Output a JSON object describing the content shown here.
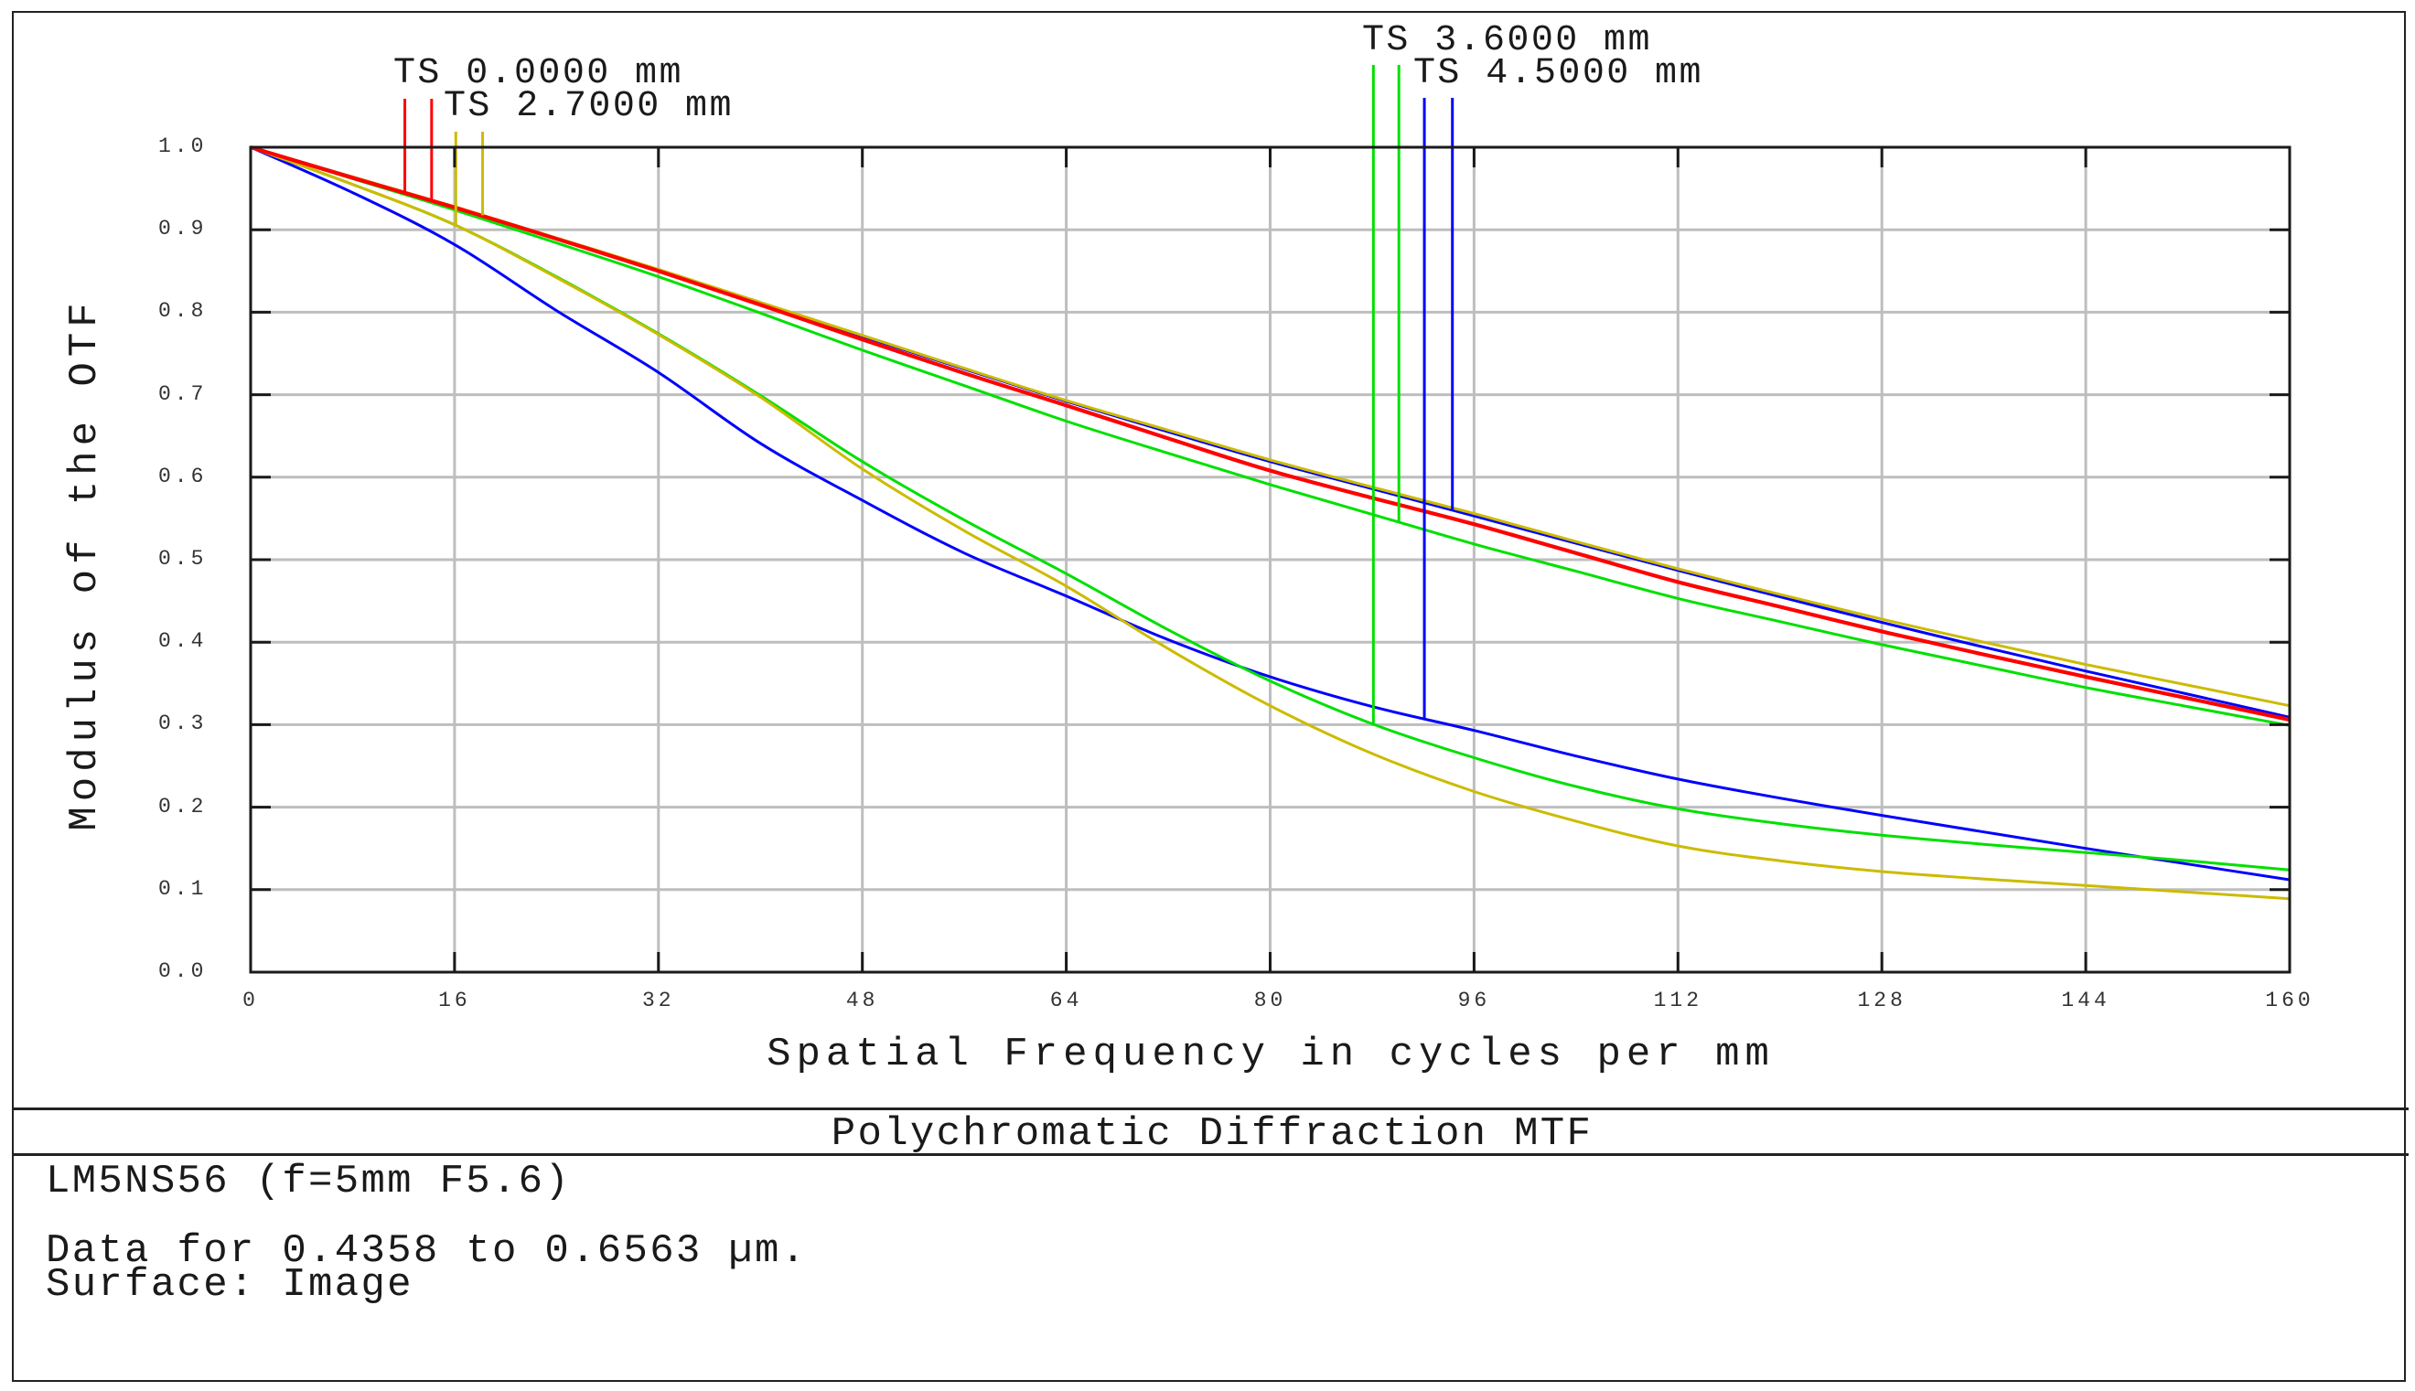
{
  "chart_data": {
    "type": "line",
    "title": "Polychromatic Diffraction MTF",
    "xlabel": "Spatial Frequency in cycles per mm",
    "ylabel": "Modulus of the OTF",
    "xlim": [
      0,
      160
    ],
    "ylim": [
      0.0,
      1.0
    ],
    "grid": true,
    "x_ticks": [
      0,
      16,
      32,
      48,
      64,
      80,
      96,
      112,
      128,
      144,
      160
    ],
    "x_tick_labels": [
      "0",
      "16",
      "32",
      "48",
      "64",
      "80",
      "96",
      "112",
      "128",
      "144",
      "160"
    ],
    "y_ticks": [
      0.0,
      0.1,
      0.2,
      0.3,
      0.4,
      0.5,
      0.6,
      0.7,
      0.8,
      0.9,
      1.0
    ],
    "y_tick_labels": [
      "0.0",
      "0.1",
      "0.2",
      "0.3",
      "0.4",
      "0.5",
      "0.6",
      "0.7",
      "0.8",
      "0.9",
      "1.0"
    ],
    "x": [
      0,
      8,
      16,
      24,
      32,
      40,
      48,
      56,
      64,
      72,
      80,
      88,
      96,
      104,
      112,
      120,
      128,
      136,
      144,
      152,
      160
    ],
    "series": [
      {
        "name": "TS 0.0000 mm (T)",
        "field": "0.0000 mm",
        "orientation": "T",
        "color": "#ff0000",
        "values": [
          1.0,
          0.963,
          0.927,
          0.889,
          0.85,
          0.809,
          0.767,
          0.726,
          0.687,
          0.647,
          0.608,
          0.575,
          0.543,
          0.508,
          0.473,
          0.443,
          0.413,
          0.385,
          0.358,
          0.332,
          0.306
        ]
      },
      {
        "name": "TS 0.0000 mm (S)",
        "field": "0.0000 mm",
        "orientation": "S",
        "color": "#ff0000",
        "values": [
          1.0,
          0.963,
          0.927,
          0.889,
          0.85,
          0.809,
          0.767,
          0.726,
          0.687,
          0.647,
          0.608,
          0.575,
          0.543,
          0.508,
          0.473,
          0.443,
          0.413,
          0.385,
          0.358,
          0.332,
          0.306
        ]
      },
      {
        "name": "TS 2.7000 mm (T)",
        "field": "2.7000 mm",
        "orientation": "T",
        "color": "#ccbb00",
        "values": [
          1.0,
          0.955,
          0.906,
          0.842,
          0.773,
          0.697,
          0.61,
          0.535,
          0.468,
          0.392,
          0.323,
          0.265,
          0.219,
          0.183,
          0.153,
          0.135,
          0.122,
          0.113,
          0.105,
          0.097,
          0.089
        ]
      },
      {
        "name": "TS 2.7000 mm (S)",
        "field": "2.7000 mm",
        "orientation": "S",
        "color": "#ccbb00",
        "values": [
          1.0,
          0.964,
          0.928,
          0.89,
          0.852,
          0.812,
          0.772,
          0.732,
          0.693,
          0.657,
          0.621,
          0.588,
          0.556,
          0.522,
          0.489,
          0.458,
          0.428,
          0.4,
          0.373,
          0.348,
          0.323
        ]
      },
      {
        "name": "TS 3.6000 mm (T)",
        "field": "3.6000 mm",
        "orientation": "T",
        "color": "#00e000",
        "values": [
          1.0,
          0.955,
          0.906,
          0.843,
          0.774,
          0.699,
          0.619,
          0.548,
          0.483,
          0.415,
          0.353,
          0.301,
          0.26,
          0.225,
          0.198,
          0.18,
          0.166,
          0.155,
          0.145,
          0.135,
          0.124
        ]
      },
      {
        "name": "TS 3.6000 mm (S)",
        "field": "3.6000 mm",
        "orientation": "S",
        "color": "#00e000",
        "values": [
          1.0,
          0.962,
          0.924,
          0.884,
          0.843,
          0.799,
          0.754,
          0.711,
          0.668,
          0.629,
          0.591,
          0.555,
          0.519,
          0.486,
          0.453,
          0.425,
          0.397,
          0.371,
          0.345,
          0.322,
          0.299
        ]
      },
      {
        "name": "TS 4.5000 mm (T)",
        "field": "4.5000 mm",
        "orientation": "T",
        "color": "#0000ff",
        "values": [
          1.0,
          0.945,
          0.882,
          0.802,
          0.727,
          0.641,
          0.572,
          0.508,
          0.456,
          0.403,
          0.358,
          0.322,
          0.293,
          0.262,
          0.234,
          0.211,
          0.19,
          0.17,
          0.15,
          0.131,
          0.112
        ]
      },
      {
        "name": "TS 4.5000 mm (S)",
        "field": "4.5000 mm",
        "orientation": "S",
        "color": "#0000ff",
        "values": [
          1.0,
          0.964,
          0.927,
          0.889,
          0.851,
          0.811,
          0.771,
          0.731,
          0.692,
          0.655,
          0.619,
          0.586,
          0.553,
          0.52,
          0.487,
          0.455,
          0.424,
          0.394,
          0.365,
          0.337,
          0.309
        ]
      }
    ],
    "legend": [
      {
        "label": "TS 0.0000 mm",
        "color": "#ff0000",
        "marker_x": [
          12.1,
          14.2
        ]
      },
      {
        "label": "TS 2.7000 mm",
        "color": "#ccbb00",
        "marker_x": [
          16.1,
          18.2
        ]
      },
      {
        "label": "TS 3.6000 mm",
        "color": "#00e000",
        "marker_x": [
          88.1,
          90.1
        ]
      },
      {
        "label": "TS 4.5000 mm",
        "color": "#0000ff",
        "marker_x": [
          92.1,
          94.3
        ]
      }
    ],
    "legend_position": "top, above plot area with vertical marker lines"
  },
  "legend_labels": {
    "field_0": "TS 0.0000 mm",
    "field_1": "TS 2.7000 mm",
    "field_2": "TS 3.6000 mm",
    "field_3": "TS 4.5000 mm"
  },
  "axes": {
    "xlabel": "Spatial Frequency in cycles per mm",
    "ylabel": "Modulus of the OTF"
  },
  "footer": {
    "title": "Polychromatic Diffraction MTF",
    "lens": "LM5NS56 (f=5mm F5.6)",
    "wavelength_range": "Data for 0.4358 to 0.6563 µm.",
    "surface": "Surface: Image"
  },
  "colors": {
    "grid": "#bebebe",
    "axis": "#1a1a1a",
    "tick_label": "#333333"
  }
}
